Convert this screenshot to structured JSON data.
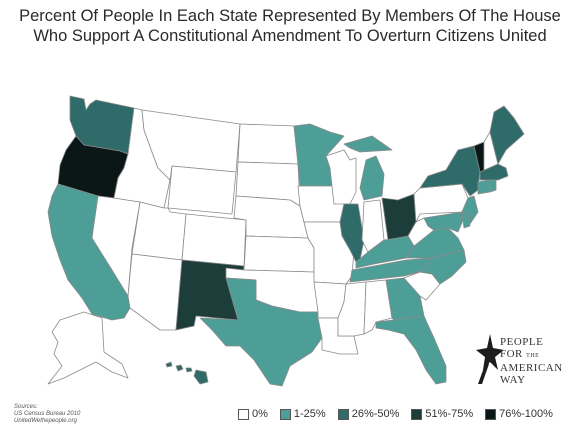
{
  "title_lines": [
    "Percent Of People In Each State Represented By Members Of The House",
    "Who Support A Constitutional Amendment To Overturn Citizens United"
  ],
  "colors": {
    "c0": "#ffffff",
    "c1": "#4e9e98",
    "c2": "#2f6b69",
    "c3": "#1d3d3b",
    "c4": "#0b1716"
  },
  "legend": [
    {
      "label": "0%",
      "color": "#ffffff"
    },
    {
      "label": "1-25%",
      "color": "#4e9e98"
    },
    {
      "label": "26%-50%",
      "color": "#2f6b69"
    },
    {
      "label": "51%-75%",
      "color": "#1d3d3b"
    },
    {
      "label": "76%-100%",
      "color": "#0b1716"
    }
  ],
  "sources": [
    "Sources:",
    "US Census Bureau 2010",
    "UnitedWethepeople.org"
  ],
  "logo": {
    "line1": "PEOPLE",
    "line2_big": "FOR",
    "line2_small": "THE",
    "line3": "AMERICAN",
    "line4": "WAY"
  },
  "states": {
    "WA": "c2",
    "OR": "c4",
    "CA": "c1",
    "NV": "c0",
    "ID": "c0",
    "MT": "c0",
    "WY": "c0",
    "UT": "c0",
    "AZ": "c0",
    "CO": "c0",
    "NM": "c3",
    "ND": "c0",
    "SD": "c0",
    "NE": "c0",
    "KS": "c0",
    "OK": "c0",
    "TX": "c1",
    "MN": "c1",
    "IA": "c0",
    "MO": "c0",
    "AR": "c0",
    "LA": "c0",
    "WI": "c0",
    "IL": "c2",
    "MI": "c1",
    "IN": "c0",
    "OH": "c3",
    "KY": "c1",
    "TN": "c1",
    "MS": "c0",
    "AL": "c0",
    "GA": "c1",
    "FL": "c1",
    "SC": "c0",
    "NC": "c1",
    "VA": "c1",
    "WV": "c0",
    "PA": "c0",
    "NY": "c2",
    "VT": "c4",
    "NH": "c0",
    "ME": "c2",
    "MA": "c2",
    "CT": "c1",
    "NJ": "c1",
    "MD": "c1",
    "DE": "c1",
    "RI": "c1",
    "AK": "c0",
    "HI": "c2"
  }
}
